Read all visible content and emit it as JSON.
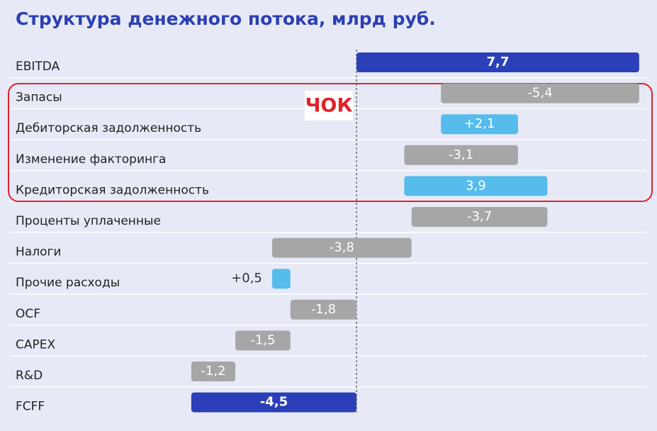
{
  "chart_data": {
    "type": "waterfall",
    "title": "Структура денежного потока, млрд руб.",
    "annotation": "ЧОК",
    "categories": [
      "EBITDA",
      "Запасы",
      "Дебиторская задолженность",
      "Изменение факторинга",
      "Кредиторская задолженность",
      "Проценты уплаченные",
      "Налоги",
      "Прочие расходы",
      "OCF",
      "CAPEX",
      "R&D",
      "FCFF"
    ],
    "values": [
      7.7,
      -5.4,
      2.1,
      -3.1,
      3.9,
      -3.7,
      -3.8,
      0.5,
      -1.8,
      -1.5,
      -1.2,
      -4.5
    ],
    "value_labels": [
      "7,7",
      "-5,4",
      "+2,1",
      "-3,1",
      "3,9",
      "-3,7",
      "-3,8",
      "+0,5",
      "-1,8",
      "-1,5",
      "-1,2",
      "-4,5"
    ],
    "measure": [
      "absolute",
      "relative",
      "relative",
      "relative",
      "relative",
      "relative",
      "relative",
      "relative",
      "absolute",
      "relative",
      "relative",
      "absolute"
    ],
    "colors": [
      "#2b40b8",
      "#a6a6a6",
      "#56bcec",
      "#a6a6a6",
      "#56bcec",
      "#a6a6a6",
      "#a6a6a6",
      "#56bcec",
      "#a6a6a6",
      "#a6a6a6",
      "#a6a6a6",
      "#2b40b8"
    ]
  }
}
